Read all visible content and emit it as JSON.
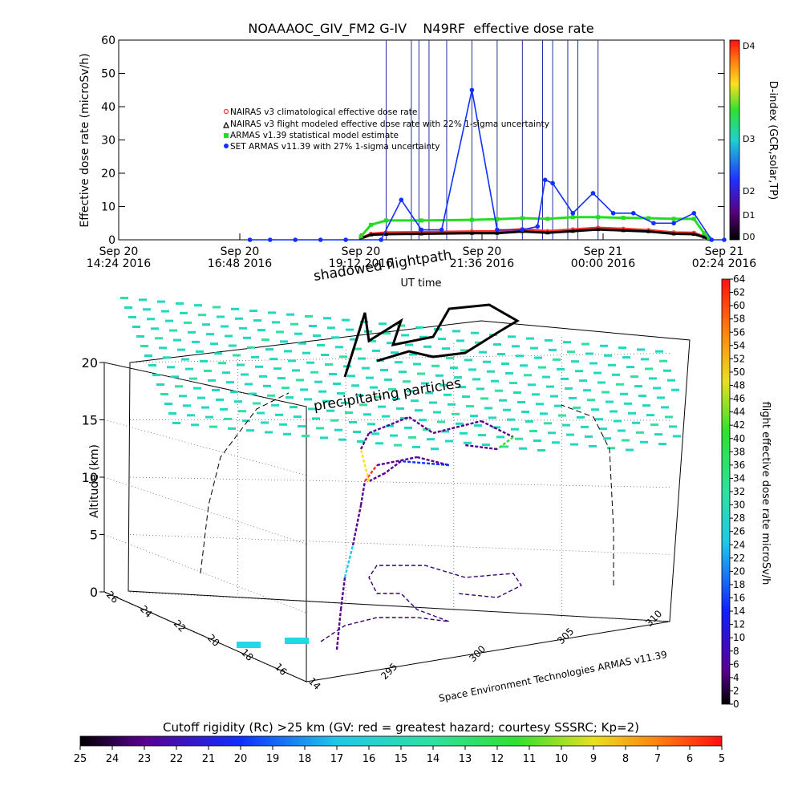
{
  "chart_data": [
    {
      "type": "line",
      "title": "NOAAAOC_GIV_FM2 G-IV    N49RF  effective dose rate",
      "ylabel": "Effective dose rate (microSv/h)",
      "xlabel": "UT time",
      "ylim": [
        0,
        60
      ],
      "yticks": [
        "0",
        "10",
        "20",
        "30",
        "40",
        "50",
        "60"
      ],
      "xtick_labels": [
        [
          "Sep 20",
          "14:24 2016"
        ],
        [
          "Sep 20",
          "16:48 2016"
        ],
        [
          "Sep 20",
          "19:12 2016"
        ],
        [
          "Sep 20",
          "21:36 2016"
        ],
        [
          "Sep 21",
          "00:00 2016"
        ],
        [
          "Sep 21",
          "02:24 2016"
        ]
      ],
      "x_unit": "hours UT from Sep 20 14:24",
      "xlim": [
        0,
        12
      ],
      "legend_position": "upper-left",
      "legend": [
        "NAIRAS v3 climatological effective dose rate",
        "NAIRAS v3 flight modeled effective dose rate with 22% 1-sigma uncertainty",
        "ARMAS v1.39 statistical model estimate",
        "SET ARMAS v11.39 with 27% 1-sigma uncertainty"
      ],
      "series": [
        {
          "name": "NAIRAS v3 climatological effective dose rate",
          "color": "#ff3030",
          "x": [
            4.8,
            5.0,
            5.3,
            6.0,
            7.0,
            7.5,
            8.0,
            8.5,
            9.0,
            9.5,
            10.0,
            10.5,
            11.0,
            11.4,
            11.6,
            11.7
          ],
          "y": [
            0.5,
            1.8,
            2.2,
            2.3,
            2.5,
            2.6,
            3.2,
            2.6,
            3.1,
            3.6,
            3.3,
            2.9,
            2.2,
            2.1,
            1.0,
            0.3
          ]
        },
        {
          "name": "NAIRAS v3 flight modeled effective dose rate with 22% 1-sigma uncertainty",
          "color": "#000000",
          "x": [
            4.8,
            5.0,
            5.3,
            6.0,
            7.0,
            7.5,
            8.0,
            8.5,
            9.0,
            9.5,
            10.0,
            10.5,
            11.0,
            11.4,
            11.6,
            11.7
          ],
          "y": [
            0.4,
            1.5,
            1.7,
            1.8,
            2.0,
            2.0,
            2.5,
            2.1,
            2.6,
            3.1,
            2.8,
            2.5,
            1.8,
            1.7,
            0.8,
            0.2
          ]
        },
        {
          "name": "ARMAS v1.39 statistical model estimate",
          "color": "#22dd22",
          "x": [
            4.8,
            5.0,
            5.3,
            6.0,
            7.0,
            7.5,
            8.0,
            8.5,
            9.0,
            9.5,
            10.0,
            10.5,
            11.0,
            11.4,
            11.6,
            11.7
          ],
          "y": [
            1.0,
            4.5,
            5.8,
            5.8,
            6.0,
            6.2,
            6.5,
            6.3,
            6.8,
            6.8,
            6.6,
            6.5,
            6.3,
            6.3,
            2.0,
            0.5
          ]
        },
        {
          "name": "SET ARMAS v11.39 with 27% 1-sigma uncertainty",
          "color": "#1030ff",
          "x": [
            2.6,
            3.0,
            3.5,
            4.0,
            4.5,
            5.2,
            5.6,
            6.0,
            6.4,
            7.0,
            7.5,
            8.0,
            8.3,
            8.45,
            8.6,
            9.0,
            9.4,
            9.8,
            10.2,
            10.6,
            11.0,
            11.4,
            11.75,
            12.0
          ],
          "y": [
            0,
            0,
            0,
            0,
            0,
            0,
            12,
            3,
            3,
            45,
            3,
            3,
            4,
            18,
            17,
            8,
            14,
            8,
            8,
            5,
            5,
            8,
            0,
            0
          ]
        }
      ],
      "colorbar": {
        "label": "D-index (GCR,solar,TP)",
        "ticks": [
          "D0",
          "D1",
          "D2",
          "D3",
          "D4"
        ],
        "colors": [
          "#000000",
          "#5a0080",
          "#2030ff",
          "#20d0d0",
          "#30e030",
          "#ffe020",
          "#ff7a10",
          "#ff1010"
        ]
      }
    },
    {
      "type": "scatter",
      "title": "",
      "zlabel": "Altitude (km)",
      "zlim": [
        0,
        20
      ],
      "zticks": [
        "0",
        "5",
        "10",
        "15",
        "20"
      ],
      "y_ticks": [
        "26",
        "24",
        "22",
        "20",
        "18",
        "16",
        "14"
      ],
      "x_ticks": [
        "295",
        "300",
        "305",
        "310"
      ],
      "annotations": [
        "shadowed flightpath",
        "precipitating particles"
      ],
      "credit": "Space Environment Technologies ARMAS v11.39",
      "colorbar": {
        "label": "flight effective dose rate microSv/h",
        "ticks": [
          "0",
          "2",
          "4",
          "6",
          "8",
          "10",
          "12",
          "14",
          "16",
          "18",
          "20",
          "22",
          "24",
          "26",
          "28",
          "30",
          "32",
          "34",
          "36",
          "38",
          "40",
          "42",
          "44",
          "46",
          "48",
          "50",
          "52",
          "54",
          "56",
          "58",
          "60",
          "62",
          "64"
        ],
        "min": 0,
        "max": 64
      },
      "cutoff_colorbar": {
        "title": "Cutoff rigidity (Rc) >25 km (GV: red = greatest hazard; courtesy SSSRC; Kp=2)",
        "ticks": [
          "25",
          "24",
          "23",
          "22",
          "21",
          "20",
          "19",
          "18",
          "17",
          "16",
          "15",
          "14",
          "13",
          "12",
          "11",
          "10",
          "9",
          "8",
          "7",
          "6",
          "5"
        ]
      }
    }
  ]
}
